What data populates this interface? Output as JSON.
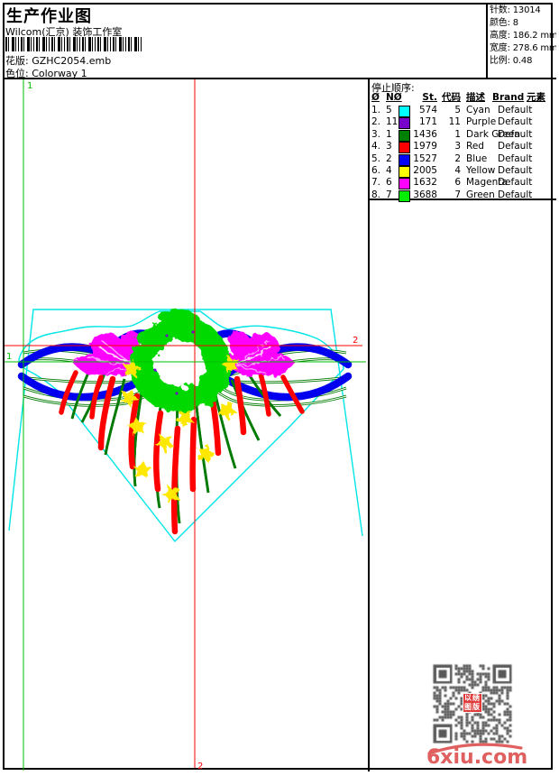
{
  "header": {
    "title": "生产作业图",
    "subtitle": "Wilcom(汇京) 装饰工作室",
    "pattern_label": "花版:",
    "pattern_value": "GZHC2054.emb",
    "colorway_label": "色位:",
    "colorway_value": "Colorway 1"
  },
  "info": {
    "rows": [
      {
        "label": "针数:",
        "value": "13014"
      },
      {
        "label": "颜色:",
        "value": "8"
      },
      {
        "label": "高度:",
        "value": "186.2 mm"
      },
      {
        "label": "宽度:",
        "value": "278.6 mm"
      },
      {
        "label": "比例:",
        "value": "0.48"
      }
    ]
  },
  "stop_sequence": {
    "title": "停止顺序:",
    "columns": {
      "num": "Ø",
      "needle": "NØ",
      "st": "St.",
      "code": "代码",
      "desc": "描述",
      "brand": "Brand",
      "element": "元素"
    },
    "rows": [
      {
        "no": "1.",
        "needle": "5",
        "color": "#00FFFF",
        "st": "574",
        "code": "5",
        "desc": "Cyan",
        "brand": "Default"
      },
      {
        "no": "2.",
        "needle": "11",
        "color": "#7700CC",
        "st": "171",
        "code": "11",
        "desc": "Purple",
        "brand": "Default"
      },
      {
        "no": "3.",
        "needle": "1",
        "color": "#008000",
        "st": "1436",
        "code": "1",
        "desc": "Dark Green",
        "brand": "Default"
      },
      {
        "no": "4.",
        "needle": "3",
        "color": "#FF0000",
        "st": "1979",
        "code": "3",
        "desc": "Red",
        "brand": "Default"
      },
      {
        "no": "5.",
        "needle": "2",
        "color": "#0000FF",
        "st": "1527",
        "code": "2",
        "desc": "Blue",
        "brand": "Default"
      },
      {
        "no": "6.",
        "needle": "4",
        "color": "#FFFF00",
        "st": "2005",
        "code": "4",
        "desc": "Yellow",
        "brand": "Default"
      },
      {
        "no": "7.",
        "needle": "6",
        "color": "#FF00FF",
        "st": "1632",
        "code": "6",
        "desc": "Magenta",
        "brand": "Default"
      },
      {
        "no": "8.",
        "needle": "7",
        "color": "#00EE00",
        "st": "3688",
        "code": "7",
        "desc": "Green",
        "brand": "Default"
      }
    ]
  },
  "design": {
    "start_marker": "1",
    "end_marker": "2",
    "colors": {
      "outline_cyan": "#00E6E6",
      "ribbon_blue": "#0000EE",
      "leaf_magenta": "#FF00FF",
      "wreath_green": "#00D900",
      "stem_green": "#007A00",
      "branch_red": "#FF0000",
      "star_yellow": "#FFE800",
      "accent_purple": "#7700CC",
      "marker_green": "#00BB00",
      "marker_red": "#FF0000"
    }
  },
  "footer": {
    "logo": "6xiu.com",
    "stamp_line1": "以绣",
    "stamp_line2": "图版",
    "logo_color": "#E06060",
    "qr_color": "#595959"
  }
}
